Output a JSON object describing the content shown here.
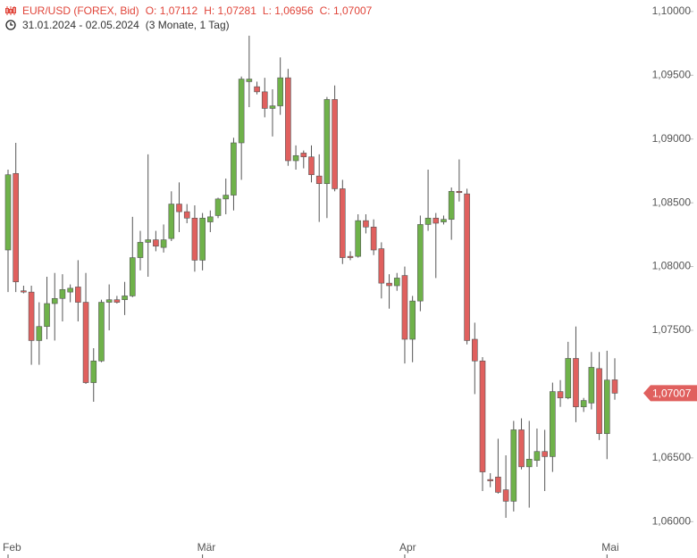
{
  "chart_data": {
    "type": "candlestick",
    "title": "EUR/USD (FOREX, Bid)",
    "ohlc_labels": [
      "O: 1,07112",
      "H: 1,07281",
      "L: 1,06956",
      "C: 1,07007"
    ],
    "subtitle": "31.01.2024 - 02.05.2024",
    "period": "(3 Monate, 1 Tag)",
    "last_value_label": "1,07007",
    "up_color": "#6fb24a",
    "down_color": "#e0605e",
    "categories": [
      "Feb",
      null,
      null,
      null,
      null,
      null,
      null,
      null,
      null,
      null,
      null,
      null,
      null,
      null,
      null,
      null,
      null,
      null,
      null,
      null,
      null,
      null,
      null,
      null,
      null,
      "Mär",
      null,
      null,
      null,
      null,
      null,
      null,
      null,
      null,
      null,
      null,
      null,
      null,
      null,
      null,
      null,
      null,
      null,
      null,
      null,
      null,
      null,
      null,
      null,
      null,
      null,
      "Apr",
      null,
      null,
      null,
      null,
      null,
      null,
      null,
      null,
      null,
      null,
      null,
      null,
      null,
      null,
      null,
      null,
      null,
      null,
      null,
      null,
      null,
      null,
      null,
      null,
      null,
      "Mai",
      null
    ],
    "open": [
      1.0813,
      1.0873,
      1.0781,
      1.078,
      1.0742,
      1.0753,
      1.0771,
      1.0775,
      1.078,
      1.0784,
      1.0772,
      1.0709,
      1.0726,
      1.0772,
      1.0774,
      1.0774,
      1.0777,
      1.0807,
      1.0819,
      1.0821,
      1.0815,
      1.0822,
      1.0849,
      1.0843,
      1.0838,
      1.0805,
      1.0835,
      1.084,
      1.0853,
      1.0856,
      1.0897,
      1.0945,
      1.0941,
      1.0937,
      1.0924,
      1.0926,
      1.0948,
      1.0883,
      1.0889,
      1.0886,
      1.0871,
      1.0865,
      1.0931,
      1.0861,
      1.0808,
      1.0808,
      1.0836,
      1.0831,
      1.0814,
      1.0787,
      1.0785,
      1.0793,
      1.0743,
      1.0773,
      1.0833,
      1.0838,
      1.0835,
      1.0837,
      1.0859,
      1.0857,
      1.0743,
      1.0726,
      1.0633,
      1.0635,
      1.0625,
      1.0616,
      1.0672,
      1.0643,
      1.0648,
      1.0655,
      1.0651,
      1.0702,
      1.0697,
      1.0728,
      1.069,
      1.0693,
      1.072,
      1.0669,
      1.07112
    ],
    "high": [
      1.0876,
      1.0897,
      1.0785,
      1.0785,
      1.0772,
      1.0792,
      1.0795,
      1.0794,
      1.0786,
      1.0805,
      1.0795,
      1.0736,
      1.0774,
      1.0786,
      1.0777,
      1.0788,
      1.0839,
      1.0828,
      1.0888,
      1.0828,
      1.0833,
      1.0859,
      1.0866,
      1.0849,
      1.0848,
      1.0842,
      1.0844,
      1.0854,
      1.0869,
      1.0901,
      1.0949,
      1.0981,
      1.0945,
      1.0948,
      1.0939,
      1.0964,
      1.0955,
      1.0895,
      1.0891,
      1.0895,
      1.0888,
      1.0933,
      1.0942,
      1.0868,
      1.0812,
      1.0841,
      1.0841,
      1.0837,
      1.0819,
      1.0794,
      1.0795,
      1.08,
      1.0777,
      1.084,
      1.0876,
      1.0842,
      1.084,
      1.0862,
      1.0884,
      1.0861,
      1.0756,
      1.0729,
      1.0638,
      1.0665,
      1.0652,
      1.0679,
      1.0681,
      1.0679,
      1.0673,
      1.0672,
      1.0709,
      1.0711,
      1.0741,
      1.0753,
      1.0697,
      1.0733,
      1.0733,
      1.0734,
      1.07281
    ],
    "low": [
      1.078,
      1.078,
      1.0779,
      1.0723,
      1.0723,
      1.0743,
      1.0742,
      1.0757,
      1.0772,
      1.0757,
      1.0708,
      1.0694,
      1.0725,
      1.075,
      1.0771,
      1.0762,
      1.0776,
      1.0797,
      1.0792,
      1.0812,
      1.0811,
      1.082,
      1.0827,
      1.0834,
      1.0796,
      1.0797,
      1.0827,
      1.0838,
      1.0841,
      1.0844,
      1.0868,
      1.0925,
      1.0935,
      1.0917,
      1.0902,
      1.0919,
      1.0879,
      1.0876,
      1.0877,
      1.0866,
      1.0835,
      1.0838,
      1.0859,
      1.0802,
      1.0805,
      1.0807,
      1.0826,
      1.0809,
      1.0775,
      1.0767,
      1.0781,
      1.0724,
      1.0725,
      1.0765,
      1.0828,
      1.0791,
      1.0833,
      1.0821,
      1.0851,
      1.0739,
      1.07,
      1.0624,
      1.0627,
      1.0622,
      1.0603,
      1.0608,
      1.0641,
      1.0611,
      1.0643,
      1.0624,
      1.0639,
      1.069,
      1.0696,
      1.0678,
      1.0686,
      1.0688,
      1.0664,
      1.0649,
      1.06956
    ],
    "close": [
      1.0872,
      1.0788,
      1.078,
      1.0742,
      1.0753,
      1.0771,
      1.0775,
      1.0782,
      1.0783,
      1.0772,
      1.0709,
      1.0726,
      1.0772,
      1.0774,
      1.0772,
      1.0777,
      1.0807,
      1.0819,
      1.0821,
      1.0816,
      1.0821,
      1.0849,
      1.0843,
      1.0838,
      1.0805,
      1.0838,
      1.0839,
      1.0853,
      1.0856,
      1.0897,
      1.0947,
      1.0947,
      1.0937,
      1.0924,
      1.0926,
      1.0948,
      1.0883,
      1.0887,
      1.0886,
      1.0872,
      1.0865,
      1.0931,
      1.0861,
      1.0807,
      1.0807,
      1.0836,
      1.0831,
      1.0813,
      1.0787,
      1.0785,
      1.0791,
      1.0743,
      1.0773,
      1.0833,
      1.0838,
      1.0834,
      1.0837,
      1.0859,
      1.0858,
      1.0742,
      1.0726,
      1.0639,
      1.0632,
      1.0623,
      1.0616,
      1.0672,
      1.0643,
      1.0649,
      1.0655,
      1.0651,
      1.0702,
      1.0697,
      1.0728,
      1.069,
      1.0695,
      1.0721,
      1.0669,
      1.0711,
      1.07007
    ],
    "ylim": [
      1.0589,
      1.1009
    ],
    "yticks": [
      {
        "value": 1.06,
        "label": "1,06000"
      },
      {
        "value": 1.065,
        "label": "1,06500"
      },
      {
        "value": 1.07,
        "label": "1,07000"
      },
      {
        "value": 1.075,
        "label": "1,07500"
      },
      {
        "value": 1.08,
        "label": "1,08000"
      },
      {
        "value": 1.085,
        "label": "1,08500"
      },
      {
        "value": 1.09,
        "label": "1,09000"
      },
      {
        "value": 1.095,
        "label": "1,09500"
      },
      {
        "value": 1.1,
        "label": "1,10000"
      }
    ]
  }
}
